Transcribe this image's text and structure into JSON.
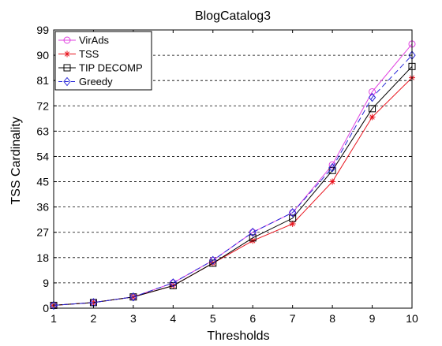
{
  "chart_data": {
    "type": "line",
    "title": "BlogCatalog3",
    "xlabel": "Thresholds",
    "ylabel": "TSS Cardinality",
    "x": [
      1,
      2,
      3,
      4,
      5,
      6,
      7,
      8,
      9,
      10
    ],
    "xlim": [
      1,
      10
    ],
    "ylim": [
      0,
      99
    ],
    "xticks": [
      1,
      2,
      3,
      4,
      5,
      6,
      7,
      8,
      9,
      10
    ],
    "yticks": [
      0,
      9,
      18,
      27,
      36,
      45,
      54,
      63,
      72,
      81,
      90,
      99
    ],
    "grid": "horizontal dashed",
    "legend_position": "top-left",
    "series": [
      {
        "name": "VirAds",
        "color": "#e040e0",
        "marker": "circle",
        "dash": "solid",
        "values": [
          1,
          2,
          4,
          9,
          17,
          27,
          34,
          51,
          77,
          94
        ]
      },
      {
        "name": "TSS",
        "color": "#e8141e",
        "marker": "star",
        "dash": "solid",
        "values": [
          1,
          2,
          4,
          8,
          16,
          24,
          30,
          45,
          68,
          82
        ]
      },
      {
        "name": "TIP DECOMP",
        "color": "#000000",
        "marker": "square",
        "dash": "solid",
        "values": [
          1,
          2,
          4,
          8,
          16,
          25,
          32,
          49,
          71,
          86
        ]
      },
      {
        "name": "Greedy",
        "color": "#2828d8",
        "marker": "diamond",
        "dash": "dashed",
        "values": [
          1,
          2,
          4,
          9,
          17,
          27,
          34,
          50,
          75,
          90
        ]
      }
    ]
  }
}
